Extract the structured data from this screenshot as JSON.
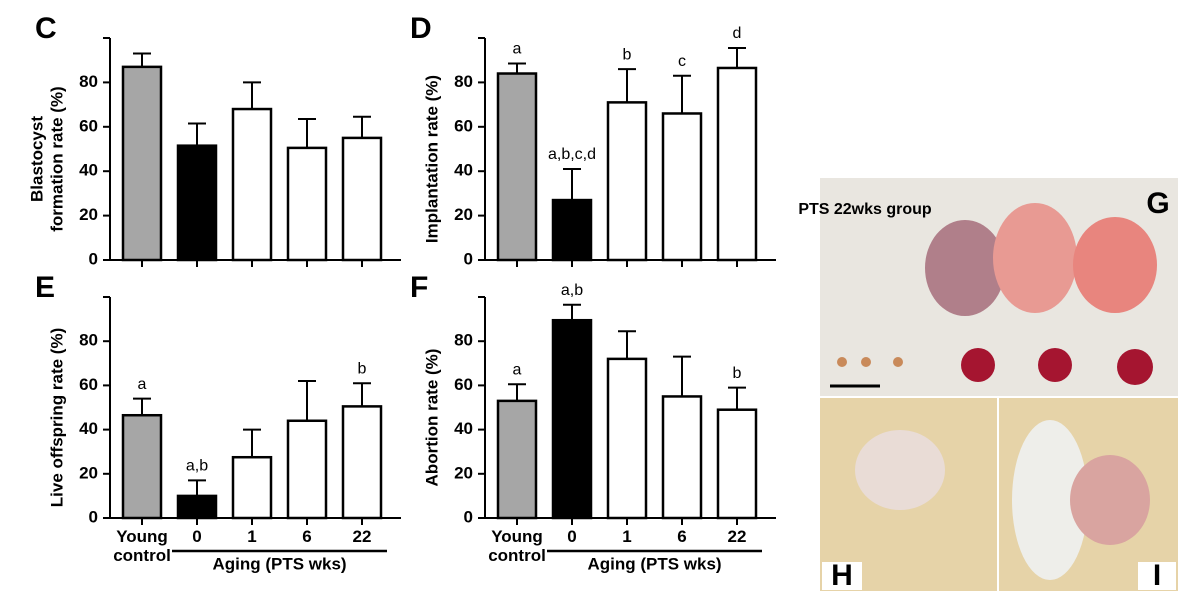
{
  "chart_data": [
    {
      "type": "bar",
      "panel": "C",
      "ylabel": [
        "Blastocyst",
        "formation rate (%)"
      ],
      "categories": [
        null,
        null,
        null,
        null,
        null
      ],
      "values": [
        87,
        51.5,
        68,
        50.5,
        55
      ],
      "errors": [
        6,
        10,
        12,
        13,
        9.5
      ],
      "colors": [
        "#a6a6a6",
        "#000000",
        "#ffffff",
        "#ffffff",
        "#ffffff"
      ],
      "annotations": [
        null,
        null,
        null,
        null,
        null
      ],
      "ylim": [
        0,
        100
      ],
      "yticks": [
        0,
        20,
        40,
        60,
        80
      ]
    },
    {
      "type": "bar",
      "panel": "D",
      "ylabel": [
        "Implantation rate (%)"
      ],
      "categories": [
        null,
        null,
        null,
        null,
        null
      ],
      "values": [
        84,
        27,
        71,
        66,
        86.5
      ],
      "errors": [
        4.5,
        14,
        15,
        17,
        9
      ],
      "colors": [
        "#a6a6a6",
        "#000000",
        "#ffffff",
        "#ffffff",
        "#ffffff"
      ],
      "annotations": [
        "a",
        "a,b,c,d",
        "b",
        "c",
        "d"
      ],
      "ylim": [
        0,
        100
      ],
      "yticks": [
        0,
        20,
        40,
        60,
        80
      ]
    },
    {
      "type": "bar",
      "panel": "E",
      "ylabel": [
        "Live offspring rate (%)"
      ],
      "categories": [
        "Young control",
        "0",
        "1",
        "6",
        "22"
      ],
      "group_label": "Aging (PTS wks)",
      "values": [
        46.5,
        10,
        27.5,
        44,
        50.5
      ],
      "errors": [
        7.5,
        7,
        12.5,
        18,
        10.5
      ],
      "colors": [
        "#a6a6a6",
        "#000000",
        "#ffffff",
        "#ffffff",
        "#ffffff"
      ],
      "annotations": [
        "a",
        "a,b",
        null,
        null,
        "b"
      ],
      "ylim": [
        0,
        100
      ],
      "yticks": [
        0,
        20,
        40,
        60,
        80
      ]
    },
    {
      "type": "bar",
      "panel": "F",
      "ylabel": [
        "Abortion rate (%)"
      ],
      "categories": [
        "Young control",
        "0",
        "1",
        "6",
        "22"
      ],
      "group_label": "Aging (PTS wks)",
      "values": [
        53,
        89.5,
        72,
        55,
        49
      ],
      "errors": [
        7.5,
        7,
        12.5,
        18,
        10
      ],
      "colors": [
        "#a6a6a6",
        "#000000",
        "#ffffff",
        "#ffffff",
        "#ffffff"
      ],
      "annotations": [
        "a",
        "a,b",
        null,
        null,
        "b"
      ],
      "ylim": [
        0,
        100
      ],
      "yticks": [
        0,
        20,
        40,
        60,
        80
      ]
    }
  ],
  "photos": {
    "g_label": "G",
    "g_caption": "PTS 22wks group",
    "h_label": "H",
    "i_label": "I"
  }
}
